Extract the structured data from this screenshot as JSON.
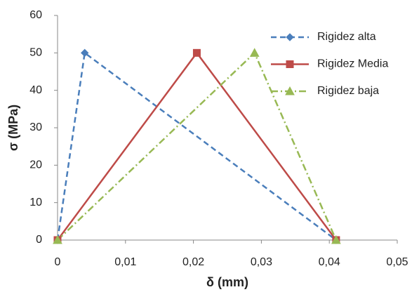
{
  "chart_data": {
    "type": "line",
    "x_label": "δ (mm)",
    "y_label": "σ (MPa)",
    "xlim": [
      0,
      0.05
    ],
    "xticks": [
      0,
      {
        "value": 0.01,
        "label": "0,01"
      },
      {
        "value": 0.02,
        "label": "0,02"
      },
      {
        "value": 0.03,
        "label": "0,03"
      },
      {
        "value": 0.04,
        "label": "0,04"
      },
      {
        "value": 0.05,
        "label": "0,05"
      }
    ],
    "ylim": [
      0,
      60
    ],
    "yticks": [
      0,
      10,
      20,
      30,
      40,
      50,
      60
    ],
    "grid": false,
    "legend": "top-right",
    "series": [
      {
        "name": "Rigidez alta",
        "color": "#4a7ebb",
        "dash": "dashed",
        "marker": "diamond",
        "x": [
          0,
          0.004,
          0.041
        ],
        "values": [
          0,
          50,
          0
        ]
      },
      {
        "name": "Rigidez Media",
        "color": "#be4b48",
        "dash": "solid",
        "marker": "square",
        "x": [
          0,
          0.0205,
          0.041
        ],
        "values": [
          0,
          50,
          0
        ]
      },
      {
        "name": "Rigidez baja",
        "color": "#98b954",
        "dash": "dashdot",
        "marker": "triangle",
        "x": [
          0,
          0.029,
          0.041
        ],
        "values": [
          0,
          50,
          0
        ]
      }
    ]
  }
}
